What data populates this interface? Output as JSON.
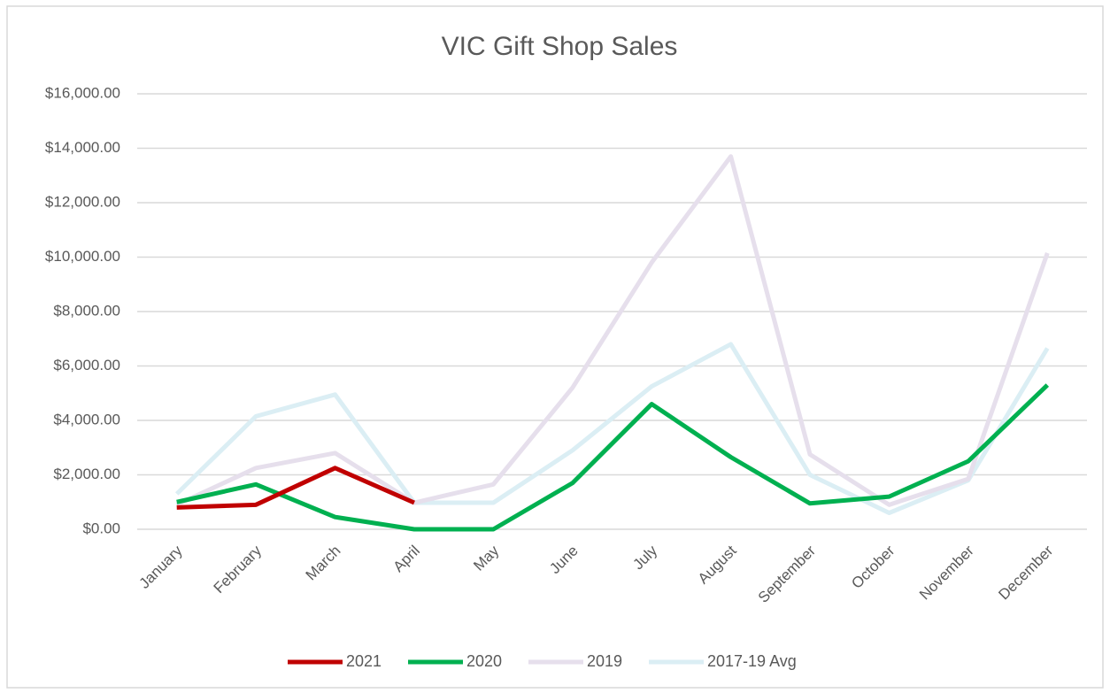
{
  "chart_data": {
    "type": "line",
    "title": "VIC Gift Shop Sales",
    "categories": [
      "January",
      "February",
      "March",
      "April",
      "May",
      "June",
      "July",
      "August",
      "September",
      "October",
      "November",
      "December"
    ],
    "series": [
      {
        "name": "2021",
        "color": "#c00000",
        "values": [
          800,
          900,
          2250,
          975,
          null,
          null,
          null,
          null,
          null,
          null,
          null,
          null
        ]
      },
      {
        "name": "2020",
        "color": "#00b050",
        "values": [
          1000,
          1650,
          450,
          0,
          0,
          1700,
          4600,
          2650,
          950,
          1200,
          2500,
          5300
        ]
      },
      {
        "name": "2019",
        "color": "#e6dfec",
        "values": [
          900,
          2250,
          2800,
          975,
          1650,
          5200,
          9800,
          13700,
          2750,
          900,
          1850,
          10150
        ]
      },
      {
        "name": "2017-19 Avg",
        "color": "#dbeef4",
        "values": [
          1300,
          4150,
          4950,
          975,
          975,
          2900,
          5250,
          6800,
          2000,
          600,
          1800,
          6650
        ]
      }
    ],
    "ylim": [
      0,
      16000
    ],
    "yticks": [
      {
        "value": 0,
        "label": "$0.00"
      },
      {
        "value": 2000,
        "label": "$2,000.00"
      },
      {
        "value": 4000,
        "label": "$4,000.00"
      },
      {
        "value": 6000,
        "label": "$6,000.00"
      },
      {
        "value": 8000,
        "label": "$8,000.00"
      },
      {
        "value": 10000,
        "label": "$10,000.00"
      },
      {
        "value": 12000,
        "label": "$12,000.00"
      },
      {
        "value": 14000,
        "label": "$14,000.00"
      },
      {
        "value": 16000,
        "label": "$16,000.00"
      }
    ],
    "grid": true,
    "legend": "bottom"
  }
}
